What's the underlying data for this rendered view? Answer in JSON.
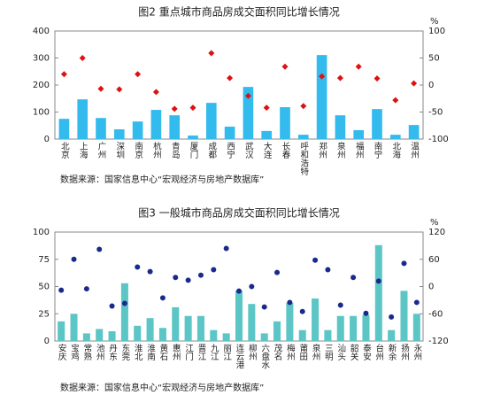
{
  "chart_data": [
    {
      "type": "combo",
      "title": "图2  重点城市商品房成交面积同比增长情况",
      "y2_label": "%",
      "categories": [
        "北京",
        "上海",
        "广州",
        "深圳",
        "南京",
        "杭州",
        "青岛",
        "厦门",
        "成都",
        "西宁",
        "武汉",
        "大连",
        "长春",
        "呼和浩特",
        "郑州",
        "泉州",
        "福州",
        "南宁",
        "北海",
        "温州"
      ],
      "series": [
        {
          "type": "bar",
          "color": "#33bbee",
          "values": [
            75,
            147,
            78,
            36,
            65,
            108,
            88,
            13,
            134,
            46,
            193,
            30,
            118,
            16,
            311,
            88,
            33,
            111,
            16,
            52
          ]
        },
        {
          "type": "diamond",
          "color": "#dd1111",
          "axis": "y2",
          "values": [
            20,
            50,
            -7,
            -8,
            20,
            -13,
            -44,
            -42,
            59,
            13,
            -20,
            -42,
            34,
            -39,
            16,
            13,
            34,
            12,
            -28,
            3
          ]
        }
      ],
      "ylim": [
        0,
        400
      ],
      "yticks": [
        0,
        100,
        200,
        300,
        400
      ],
      "y2lim": [
        -100,
        100
      ],
      "y2ticks": [
        -100,
        -50,
        0,
        50,
        100
      ],
      "source": "数据来源：国家信息中心“宏观经济与房地产数据库”"
    },
    {
      "type": "combo",
      "title": "图3  一般城市商品房成交面积同比增长情况",
      "y2_label": "%",
      "categories": [
        "安庆",
        "宝鸡",
        "常熟",
        "池州",
        "丹东",
        "东莞",
        "淮北",
        "淮南",
        "黄石",
        "惠州",
        "江门",
        "晋江",
        "九江",
        "丽江",
        "连云港",
        "柳州",
        "六盘水",
        "茂名",
        "梅州",
        "莆田",
        "泉州",
        "三明",
        "汕头",
        "韶关",
        "泰安",
        "台州",
        "新余",
        "扬州",
        "永州"
      ],
      "series": [
        {
          "type": "bar",
          "color": "#5cc6c6",
          "values": [
            18,
            25,
            7,
            11,
            9,
            53,
            14,
            21,
            12,
            31,
            23,
            23,
            10,
            7,
            46,
            34,
            7,
            18,
            35,
            10,
            39,
            10,
            23,
            23,
            24,
            88,
            10,
            46,
            25
          ]
        },
        {
          "type": "dot",
          "color": "#1a2a8c",
          "axis": "y2",
          "values": [
            -8,
            60,
            -5,
            82,
            -43,
            -37,
            43,
            33,
            -25,
            20,
            14,
            25,
            37,
            84,
            -10,
            0,
            -45,
            31,
            -35,
            -55,
            58,
            37,
            -41,
            20,
            -59,
            12,
            -67,
            51,
            -35
          ]
        }
      ],
      "ylim": [
        0,
        100
      ],
      "yticks": [
        0,
        25,
        50,
        75,
        100
      ],
      "y2lim": [
        -120,
        120
      ],
      "y2ticks": [
        -120,
        -60,
        0,
        60,
        120
      ],
      "source": "数据来源：国家信息中心“宏观经济与房地产数据库”"
    }
  ]
}
